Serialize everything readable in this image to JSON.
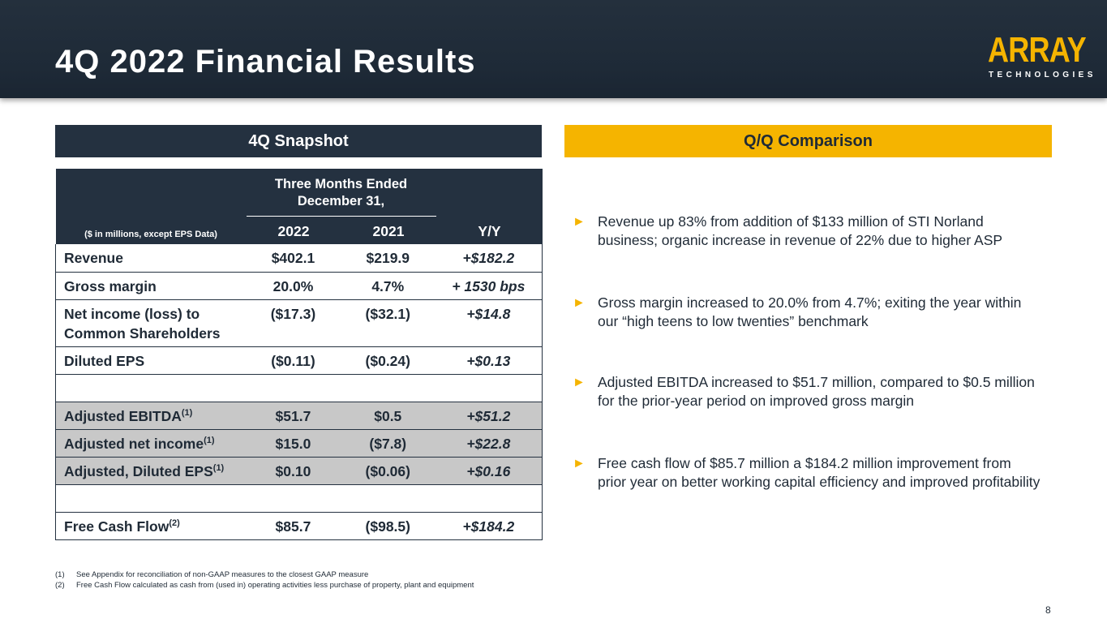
{
  "header": {
    "title": "4Q 2022 Financial Results",
    "logo_word": "ARRAY",
    "logo_sub": "TECHNOLOGIES",
    "brand_color": "#f5b400",
    "navy": "#243140"
  },
  "left_panel": {
    "title": "4Q Snapshot",
    "table": {
      "units_label": "($ in millions, except EPS Data)",
      "period_label_line1": "Three Months Ended",
      "period_label_line2": "December 31,",
      "col_2022": "2022",
      "col_2021": "2021",
      "col_yy": "Y/Y",
      "rows": [
        {
          "label": "Revenue",
          "v2022": "$402.1",
          "v2021": "$219.9",
          "yy": "+$182.2"
        },
        {
          "label": "Gross margin",
          "v2022": "20.0%",
          "v2021": "4.7%",
          "yy": "+ 1530 bps"
        },
        {
          "label_line1": "Net income (loss) to",
          "label_line2": "Common Shareholders",
          "v2022": "($17.3)",
          "v2021": "($32.1)",
          "yy": "+$14.8"
        },
        {
          "label": "Diluted EPS",
          "v2022": "($0.11)",
          "v2021": "($0.24)",
          "yy": "+$0.13"
        },
        {
          "label": "Adjusted EBITDA",
          "sup": "(1)",
          "v2022": "$51.7",
          "v2021": "$0.5",
          "yy": "+$51.2"
        },
        {
          "label": "Adjusted net income",
          "sup": "(1)",
          "v2022": "$15.0",
          "v2021": "($7.8)",
          "yy": "+$22.8"
        },
        {
          "label": "Adjusted, Diluted EPS",
          "sup": "(1)",
          "v2022": "$0.10",
          "v2021": "($0.06)",
          "yy": "+$0.16"
        },
        {
          "label": "Free Cash Flow",
          "sup": "(2)",
          "v2022": "$85.7",
          "v2021": "($98.5)",
          "yy": "+$184.2"
        }
      ]
    }
  },
  "right_panel": {
    "title": "Q/Q Comparison",
    "bullet_glyph": "►",
    "bullets": [
      "Revenue up 83% from addition of $133 million of STI Norland business; organic increase in revenue of 22% due to higher ASP",
      "Gross margin increased to 20.0% from 4.7%; exiting the year within our “high teens to low twenties” benchmark",
      "Adjusted EBITDA increased to $51.7 million, compared to $0.5 million for the prior-year period on improved gross margin",
      "Free cash flow of $85.7 million a $184.2 million improvement from prior year on better working capital efficiency and improved profitability"
    ]
  },
  "footnotes": [
    {
      "key": "(1)",
      "text": "See Appendix for reconciliation of non-GAAP measures to the closest GAAP measure"
    },
    {
      "key": "(2)",
      "text": "Free Cash Flow calculated as cash from (used in) operating activities less purchase of property, plant and equipment"
    }
  ],
  "page_number": "8"
}
